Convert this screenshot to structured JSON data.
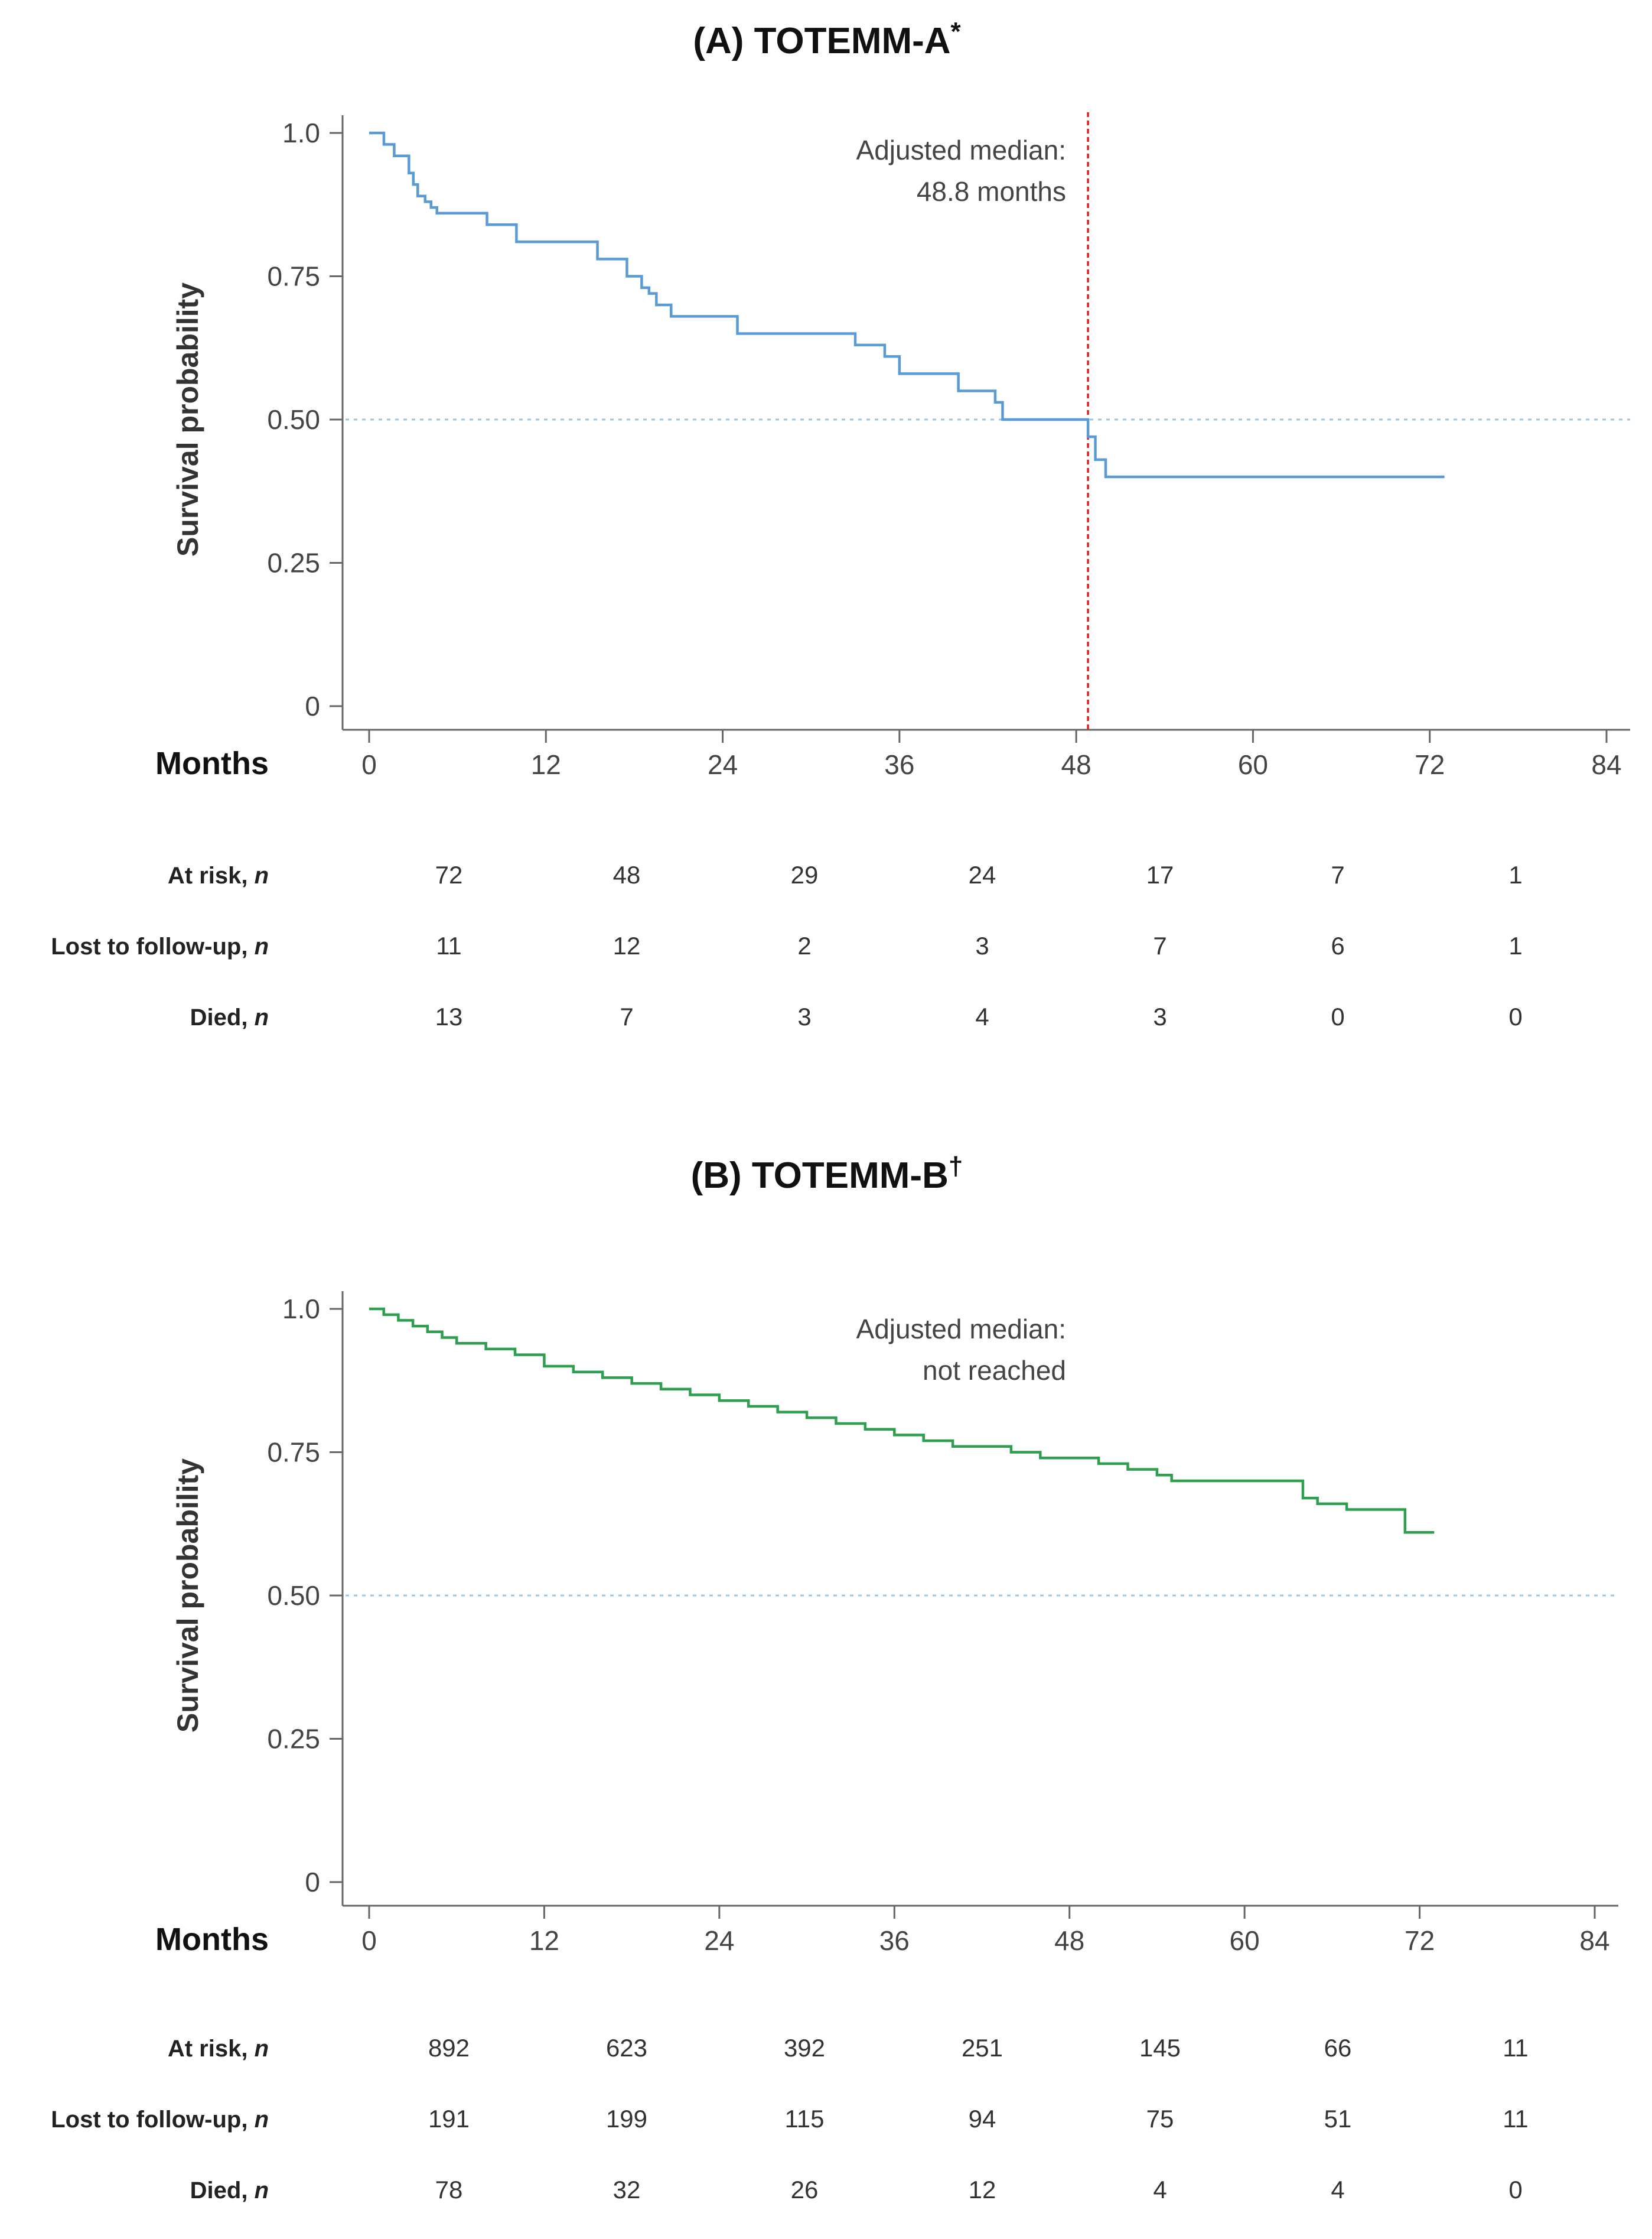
{
  "chart_data": [
    {
      "type": "line",
      "title_main": "(A)  TOTEMM-A",
      "title_sup": "*",
      "xlabel": "Months",
      "ylabel": "Survival probability",
      "xlim": [
        0,
        84
      ],
      "ylim": [
        0,
        1
      ],
      "xticks": [
        0,
        12,
        24,
        36,
        48,
        60,
        72,
        84
      ],
      "yticks": [
        "0",
        "0.25",
        "0.50",
        "0.75",
        "1.0"
      ],
      "ytick_values": [
        0,
        0.25,
        0.5,
        0.75,
        1.0
      ],
      "series": [
        {
          "name": "TOTEMM-A",
          "color": "#5b9bd5",
          "x": [
            0,
            1.0,
            1.7,
            2.7,
            3.0,
            3.3,
            3.8,
            4.2,
            4.6,
            5.3,
            8.0,
            10.0,
            15.5,
            17.5,
            18.5,
            19.0,
            19.5,
            20.5,
            25.0,
            33.0,
            35.0,
            36.0,
            40.0,
            42.5,
            43.0,
            48.8,
            49.3,
            50.0,
            73.0
          ],
          "y": [
            1.0,
            0.98,
            0.96,
            0.93,
            0.91,
            0.89,
            0.88,
            0.87,
            0.86,
            0.86,
            0.84,
            0.81,
            0.78,
            0.75,
            0.73,
            0.72,
            0.7,
            0.68,
            0.65,
            0.63,
            0.61,
            0.58,
            0.55,
            0.53,
            0.5,
            0.47,
            0.43,
            0.4,
            0.4
          ]
        }
      ],
      "median_line": {
        "y": 0.5,
        "color": "#9dc3e6"
      },
      "vertical_line": {
        "x": 48.8,
        "color": "#e0201b"
      },
      "annotation": [
        "Adjusted median:",
        "48.8 months"
      ],
      "risk_table": {
        "rows": [
          {
            "label": "At risk, ",
            "label_italic": "n",
            "values": [
              "72",
              "48",
              "29",
              "24",
              "17",
              "7",
              "1"
            ]
          },
          {
            "label": "Lost to follow-up, ",
            "label_italic": "n",
            "values": [
              "11",
              "12",
              "2",
              "3",
              "7",
              "6",
              "1"
            ]
          },
          {
            "label": "Died, ",
            "label_italic": "n",
            "values": [
              "13",
              "7",
              "3",
              "4",
              "3",
              "0",
              "0"
            ]
          }
        ]
      }
    },
    {
      "type": "line",
      "title_main": "(B) TOTEMM-B",
      "title_sup": "†",
      "xlabel": "Months",
      "ylabel": "Survival probability",
      "xlim": [
        0,
        84
      ],
      "ylim": [
        0,
        1
      ],
      "xticks": [
        0,
        12,
        24,
        36,
        48,
        60,
        72,
        84
      ],
      "yticks": [
        "0",
        "0.25",
        "0.50",
        "0.75",
        "1.0"
      ],
      "ytick_values": [
        0,
        0.25,
        0.5,
        0.75,
        1.0
      ],
      "series": [
        {
          "name": "TOTEMM-B",
          "color": "#2e9e4f",
          "x": [
            0,
            1,
            2,
            3,
            4,
            5,
            6,
            8,
            10,
            12,
            14,
            16,
            18,
            20,
            22,
            24,
            26,
            28,
            30,
            32,
            34,
            36,
            38,
            40,
            42,
            44,
            46,
            48,
            50,
            52,
            54,
            55,
            58,
            60,
            62,
            64,
            65,
            67,
            69,
            71,
            73
          ],
          "y": [
            1.0,
            0.99,
            0.98,
            0.97,
            0.96,
            0.95,
            0.94,
            0.93,
            0.92,
            0.9,
            0.89,
            0.88,
            0.87,
            0.86,
            0.85,
            0.84,
            0.83,
            0.82,
            0.81,
            0.8,
            0.79,
            0.78,
            0.77,
            0.76,
            0.76,
            0.75,
            0.74,
            0.74,
            0.73,
            0.72,
            0.71,
            0.7,
            0.7,
            0.7,
            0.7,
            0.67,
            0.66,
            0.65,
            0.65,
            0.61,
            0.61
          ]
        }
      ],
      "median_line": {
        "y": 0.5,
        "color": "#9dc3e6"
      },
      "annotation": [
        "Adjusted median:",
        "not reached"
      ],
      "risk_table": {
        "rows": [
          {
            "label": "At risk, ",
            "label_italic": "n",
            "values": [
              "892",
              "623",
              "392",
              "251",
              "145",
              "66",
              "11"
            ]
          },
          {
            "label": "Lost to follow-up, ",
            "label_italic": "n",
            "values": [
              "191",
              "199",
              "115",
              "94",
              "75",
              "51",
              "11"
            ]
          },
          {
            "label": "Died, ",
            "label_italic": "n",
            "values": [
              "78",
              "32",
              "26",
              "12",
              "4",
              "4",
              "0"
            ]
          }
        ]
      }
    }
  ]
}
